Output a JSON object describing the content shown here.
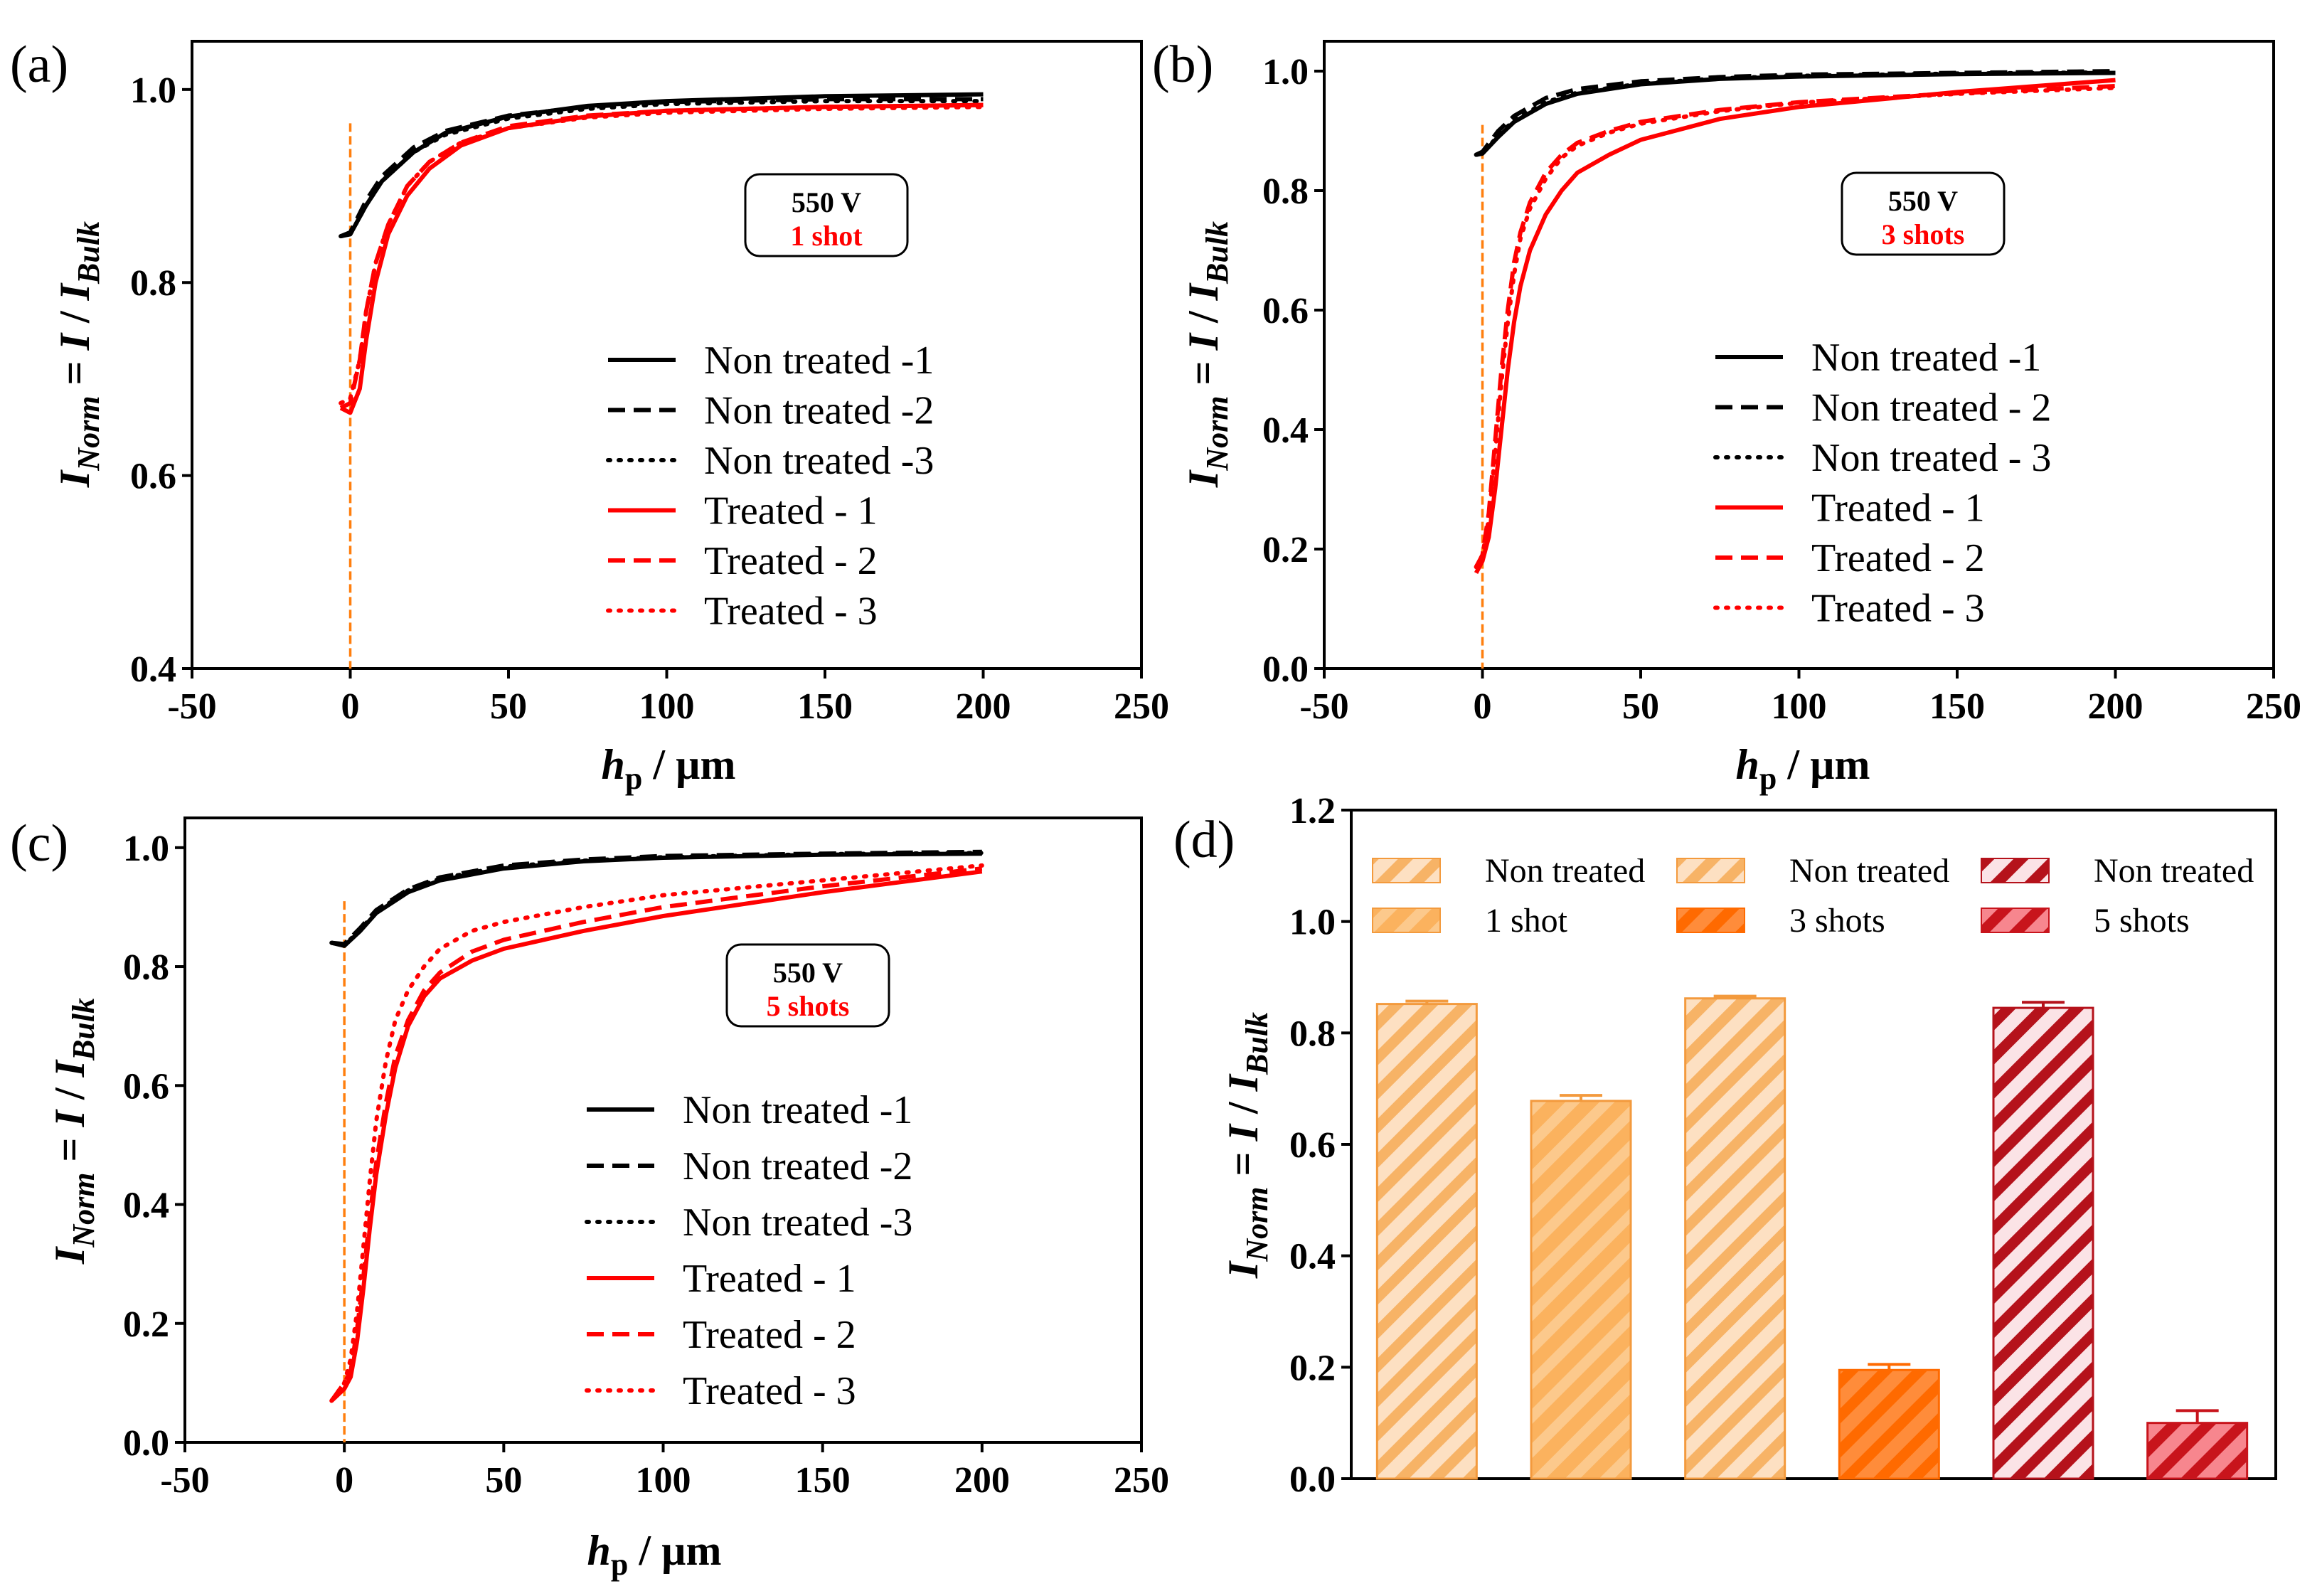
{
  "figure": {
    "panel_labels": [
      "(a)",
      "(b)",
      "(c)",
      "(d)"
    ],
    "xaxis_title_var": "h",
    "xaxis_title_sub": "p",
    "xaxis_title_unit": " / µm",
    "yaxis_title_var": "I",
    "yaxis_title_sub": "Norm",
    "yaxis_title_mid": " = ",
    "yaxis_title_var2": "I",
    "yaxis_title_slash": " / ",
    "yaxis_title_var3": "I",
    "yaxis_title_sub2": "Bulk"
  },
  "colors": {
    "non_treated": "#000000",
    "treated": "#ff0000",
    "marker_line": "#ff7f0e",
    "bar_light_orange_fill": "#fde0c2",
    "bar_light_orange_stripe": "#f7b366",
    "bar_mid_orange_fill": "#fbb25e",
    "bar_mid_orange_stripe": "#fcc98c",
    "bar_orange_fill": "#ff8c3a",
    "bar_orange_stripe": "#ff6a00",
    "bar_pink_fill": "#fbe3e6",
    "bar_pink_stripe": "#b5121b",
    "bar_red_fill": "#f7868e",
    "bar_red_stripe": "#c8141c"
  },
  "chart_data": [
    {
      "id": "a",
      "type": "line",
      "panel_label": "(a)",
      "xlabel": "hp / µm",
      "ylabel": "INorm = I / IBulk",
      "xlim": [
        -50,
        250
      ],
      "ylim": [
        0.4,
        1.05
      ],
      "xticks": [
        -50,
        0,
        50,
        100,
        150,
        200,
        250
      ],
      "xtick_labels": [
        "-50",
        "0",
        "50",
        "100",
        "150",
        "200",
        "250"
      ],
      "yticks": [
        0.4,
        0.6,
        0.8,
        1.0
      ],
      "ytick_labels": [
        "0.4",
        "0.6",
        "0.8",
        "1.0"
      ],
      "marker_x": 0,
      "marker_y_range": [
        0.4,
        0.965
      ],
      "annotation": {
        "voltage": "550 V",
        "shots": "1 shot"
      },
      "legend_placement": "center-right",
      "series": [
        {
          "name": "Non treated -1",
          "color": "black",
          "style": "solid",
          "x": [
            -3,
            0,
            5,
            10,
            20,
            30,
            50,
            75,
            100,
            150,
            200
          ],
          "y": [
            0.848,
            0.85,
            0.88,
            0.905,
            0.935,
            0.955,
            0.972,
            0.983,
            0.988,
            0.993,
            0.995
          ]
        },
        {
          "name": "Non treated -2",
          "color": "black",
          "style": "dashed",
          "x": [
            -3,
            0,
            5,
            10,
            20,
            30,
            50,
            75,
            100,
            150,
            200
          ],
          "y": [
            0.848,
            0.852,
            0.885,
            0.91,
            0.94,
            0.957,
            0.973,
            0.982,
            0.987,
            0.99,
            0.99
          ]
        },
        {
          "name": "Non treated -3",
          "color": "black",
          "style": "dotted",
          "x": [
            -3,
            0,
            5,
            10,
            20,
            30,
            50,
            75,
            100,
            150,
            200
          ],
          "y": [
            0.848,
            0.85,
            0.88,
            0.905,
            0.935,
            0.953,
            0.97,
            0.98,
            0.985,
            0.988,
            0.988
          ]
        },
        {
          "name": "Treated - 1",
          "color": "red",
          "style": "solid",
          "x": [
            -3,
            0,
            3,
            5,
            8,
            12,
            18,
            25,
            35,
            50,
            75,
            100,
            150,
            200
          ],
          "y": [
            0.67,
            0.665,
            0.69,
            0.74,
            0.8,
            0.85,
            0.89,
            0.918,
            0.942,
            0.96,
            0.972,
            0.978,
            0.982,
            0.984
          ]
        },
        {
          "name": "Treated - 2",
          "color": "red",
          "style": "dashed",
          "x": [
            -3,
            0,
            3,
            5,
            8,
            12,
            18,
            25,
            35,
            50,
            75,
            100,
            150,
            200
          ],
          "y": [
            0.67,
            0.675,
            0.72,
            0.77,
            0.82,
            0.86,
            0.9,
            0.925,
            0.945,
            0.962,
            0.973,
            0.978,
            0.982,
            0.984
          ]
        },
        {
          "name": "Treated - 3",
          "color": "red",
          "style": "dotted",
          "x": [
            -3,
            0,
            3,
            5,
            8,
            12,
            18,
            25,
            35,
            50,
            75,
            100,
            150,
            200
          ],
          "y": [
            0.675,
            0.68,
            0.72,
            0.77,
            0.82,
            0.86,
            0.9,
            0.925,
            0.945,
            0.96,
            0.971,
            0.976,
            0.98,
            0.982
          ]
        }
      ]
    },
    {
      "id": "b",
      "type": "line",
      "panel_label": "(b)",
      "xlabel": "hp / µm",
      "ylabel": "INorm = I / IBulk",
      "xlim": [
        -50,
        250
      ],
      "ylim": [
        0.0,
        1.05
      ],
      "xticks": [
        -50,
        0,
        50,
        100,
        150,
        200,
        250
      ],
      "xtick_labels": [
        "-50",
        "0",
        "50",
        "100",
        "150",
        "200",
        "250"
      ],
      "yticks": [
        0.0,
        0.2,
        0.4,
        0.6,
        0.8,
        1.0
      ],
      "ytick_labels": [
        "0.0",
        "0.2",
        "0.4",
        "0.6",
        "0.8",
        "1.0"
      ],
      "marker_x": 0,
      "marker_y_range": [
        0.0,
        0.91
      ],
      "annotation": {
        "voltage": "550 V",
        "shots": "3 shots"
      },
      "legend_placement": "center-right",
      "series": [
        {
          "name": "Non treated -1",
          "color": "black",
          "style": "solid",
          "x": [
            -2,
            0,
            5,
            10,
            20,
            30,
            50,
            75,
            100,
            150,
            200
          ],
          "y": [
            0.86,
            0.862,
            0.89,
            0.915,
            0.945,
            0.962,
            0.978,
            0.987,
            0.991,
            0.995,
            0.997
          ]
        },
        {
          "name": "Non treated - 2",
          "color": "black",
          "style": "dashed",
          "x": [
            -2,
            0,
            5,
            10,
            20,
            30,
            50,
            75,
            100,
            150,
            200
          ],
          "y": [
            0.86,
            0.865,
            0.9,
            0.925,
            0.955,
            0.97,
            0.983,
            0.99,
            0.994,
            0.997,
            1.0
          ]
        },
        {
          "name": "Non treated - 3",
          "color": "black",
          "style": "dotted",
          "x": [
            -2,
            0,
            5,
            10,
            20,
            30,
            50,
            75,
            100,
            150,
            200
          ],
          "y": [
            0.86,
            0.862,
            0.892,
            0.918,
            0.948,
            0.964,
            0.979,
            0.988,
            0.992,
            0.996,
            0.998
          ]
        },
        {
          "name": "Treated - 1",
          "color": "red",
          "style": "solid",
          "x": [
            -2,
            0,
            2,
            4,
            6,
            8,
            10,
            12,
            15,
            20,
            25,
            30,
            40,
            50,
            75,
            100,
            150,
            200
          ],
          "y": [
            0.16,
            0.18,
            0.22,
            0.3,
            0.4,
            0.5,
            0.58,
            0.64,
            0.7,
            0.76,
            0.8,
            0.83,
            0.86,
            0.885,
            0.92,
            0.94,
            0.965,
            0.985
          ]
        },
        {
          "name": "Treated - 2",
          "color": "red",
          "style": "dashed",
          "x": [
            -2,
            0,
            2,
            4,
            6,
            8,
            10,
            12,
            15,
            20,
            25,
            30,
            40,
            50,
            75,
            100,
            150,
            200
          ],
          "y": [
            0.17,
            0.19,
            0.26,
            0.38,
            0.5,
            0.6,
            0.68,
            0.73,
            0.78,
            0.83,
            0.86,
            0.88,
            0.9,
            0.915,
            0.935,
            0.948,
            0.963,
            0.975
          ]
        },
        {
          "name": "Treated - 3",
          "color": "red",
          "style": "dotted",
          "x": [
            -2,
            0,
            2,
            4,
            6,
            8,
            10,
            12,
            15,
            20,
            25,
            30,
            40,
            50,
            75,
            100,
            150,
            200
          ],
          "y": [
            0.17,
            0.19,
            0.25,
            0.36,
            0.48,
            0.58,
            0.66,
            0.72,
            0.77,
            0.82,
            0.855,
            0.875,
            0.897,
            0.912,
            0.933,
            0.947,
            0.962,
            0.972
          ]
        }
      ]
    },
    {
      "id": "c",
      "type": "line",
      "panel_label": "(c)",
      "xlabel": "hp / µm",
      "ylabel": "INorm = I / IBulk",
      "xlim": [
        -50,
        250
      ],
      "ylim": [
        0.0,
        1.05
      ],
      "xticks": [
        -50,
        0,
        50,
        100,
        150,
        200,
        250
      ],
      "xtick_labels": [
        "-50",
        "0",
        "50",
        "100",
        "150",
        "200",
        "250"
      ],
      "yticks": [
        0.0,
        0.2,
        0.4,
        0.6,
        0.8,
        1.0
      ],
      "ytick_labels": [
        "0.0",
        "0.2",
        "0.4",
        "0.6",
        "0.8",
        "1.0"
      ],
      "marker_x": 0,
      "marker_y_range": [
        0.0,
        0.91
      ],
      "annotation": {
        "voltage": "550 V",
        "shots": "5 shots"
      },
      "legend_placement": "center-right",
      "series": [
        {
          "name": "Non treated -1",
          "color": "black",
          "style": "solid",
          "x": [
            -4,
            0,
            5,
            10,
            20,
            30,
            50,
            75,
            100,
            150,
            200
          ],
          "y": [
            0.84,
            0.835,
            0.86,
            0.89,
            0.925,
            0.945,
            0.965,
            0.977,
            0.983,
            0.988,
            0.99
          ]
        },
        {
          "name": "Non treated -2",
          "color": "black",
          "style": "dashed",
          "x": [
            -4,
            0,
            5,
            10,
            20,
            30,
            50,
            75,
            100,
            150,
            200
          ],
          "y": [
            0.84,
            0.838,
            0.865,
            0.895,
            0.93,
            0.95,
            0.97,
            0.98,
            0.986,
            0.99,
            0.993
          ]
        },
        {
          "name": "Non treated -3",
          "color": "black",
          "style": "dotted",
          "x": [
            -4,
            0,
            5,
            10,
            20,
            30,
            50,
            75,
            100,
            150,
            200
          ],
          "y": [
            0.84,
            0.836,
            0.862,
            0.892,
            0.928,
            0.948,
            0.968,
            0.978,
            0.984,
            0.989,
            0.991
          ]
        },
        {
          "name": "Treated - 1",
          "color": "red",
          "style": "solid",
          "x": [
            -4,
            0,
            2,
            4,
            6,
            8,
            10,
            13,
            16,
            20,
            25,
            30,
            40,
            50,
            75,
            100,
            150,
            200
          ],
          "y": [
            0.07,
            0.09,
            0.11,
            0.17,
            0.26,
            0.36,
            0.45,
            0.55,
            0.63,
            0.7,
            0.75,
            0.78,
            0.81,
            0.83,
            0.86,
            0.885,
            0.925,
            0.96
          ]
        },
        {
          "name": "Treated - 2",
          "color": "red",
          "style": "dashed",
          "x": [
            -4,
            0,
            2,
            4,
            6,
            8,
            10,
            13,
            16,
            20,
            25,
            30,
            40,
            50,
            75,
            100,
            150,
            200
          ],
          "y": [
            0.07,
            0.1,
            0.12,
            0.19,
            0.28,
            0.38,
            0.47,
            0.57,
            0.65,
            0.71,
            0.76,
            0.79,
            0.825,
            0.845,
            0.875,
            0.9,
            0.935,
            0.965
          ]
        },
        {
          "name": "Treated - 3",
          "color": "red",
          "style": "dotted",
          "x": [
            -4,
            0,
            2,
            4,
            6,
            8,
            10,
            13,
            16,
            20,
            25,
            30,
            40,
            50,
            75,
            100,
            150,
            200
          ],
          "y": [
            0.07,
            0.1,
            0.14,
            0.22,
            0.33,
            0.44,
            0.54,
            0.64,
            0.71,
            0.76,
            0.8,
            0.83,
            0.86,
            0.875,
            0.9,
            0.92,
            0.945,
            0.97
          ]
        }
      ]
    },
    {
      "id": "d",
      "type": "bar",
      "panel_label": "(d)",
      "ylabel": "INorm = I / IBulk",
      "ylim": [
        0.0,
        1.2
      ],
      "yticks": [
        0.0,
        0.2,
        0.4,
        0.6,
        0.8,
        1.0,
        1.2
      ],
      "ytick_labels": [
        "0.0",
        "0.2",
        "0.4",
        "0.6",
        "0.8",
        "1.0",
        "1.2"
      ],
      "legend_placement": "top",
      "categories": [
        "Non treated",
        "1 shot",
        "Non treated",
        "3 shots",
        "Non treated",
        "5 shots"
      ],
      "values": [
        0.852,
        0.678,
        0.862,
        0.195,
        0.845,
        0.1
      ],
      "errors": [
        0.005,
        0.01,
        0.004,
        0.01,
        0.01,
        0.022
      ],
      "bar_styles": [
        "light_orange",
        "mid_orange",
        "light_orange",
        "orange",
        "pink",
        "red"
      ]
    }
  ]
}
